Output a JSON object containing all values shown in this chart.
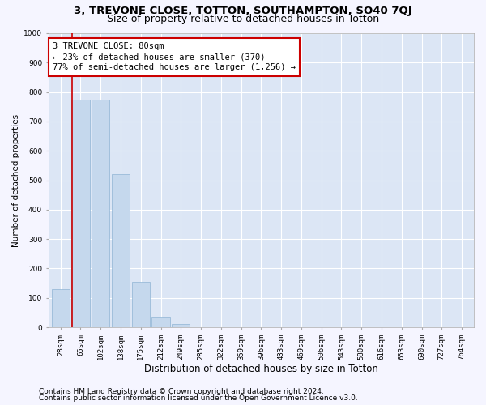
{
  "title": "3, TREVONE CLOSE, TOTTON, SOUTHAMPTON, SO40 7QJ",
  "subtitle": "Size of property relative to detached houses in Totton",
  "xlabel": "Distribution of detached houses by size in Totton",
  "ylabel": "Number of detached properties",
  "categories": [
    "28sqm",
    "65sqm",
    "102sqm",
    "138sqm",
    "175sqm",
    "212sqm",
    "249sqm",
    "285sqm",
    "322sqm",
    "359sqm",
    "396sqm",
    "433sqm",
    "469sqm",
    "506sqm",
    "543sqm",
    "580sqm",
    "616sqm",
    "653sqm",
    "690sqm",
    "727sqm",
    "764sqm"
  ],
  "values": [
    130,
    775,
    775,
    520,
    155,
    37,
    12,
    0,
    0,
    0,
    0,
    0,
    0,
    0,
    0,
    0,
    0,
    0,
    0,
    0,
    0
  ],
  "bar_color": "#c5d8ed",
  "bar_edgecolor": "#8fb4d4",
  "background_color": "#dce6f5",
  "grid_color": "#ffffff",
  "vline_color": "#cc0000",
  "vline_pos": 0.575,
  "annotation_text": "3 TREVONE CLOSE: 80sqm\n← 23% of detached houses are smaller (370)\n77% of semi-detached houses are larger (1,256) →",
  "annotation_box_facecolor": "#ffffff",
  "annotation_box_edgecolor": "#cc0000",
  "ylim": [
    0,
    1000
  ],
  "yticks": [
    0,
    100,
    200,
    300,
    400,
    500,
    600,
    700,
    800,
    900,
    1000
  ],
  "footer1": "Contains HM Land Registry data © Crown copyright and database right 2024.",
  "footer2": "Contains public sector information licensed under the Open Government Licence v3.0.",
  "title_fontsize": 9.5,
  "subtitle_fontsize": 9,
  "xlabel_fontsize": 8.5,
  "ylabel_fontsize": 7.5,
  "tick_fontsize": 6.5,
  "annotation_fontsize": 7.5,
  "footer_fontsize": 6.5,
  "fig_facecolor": "#f5f5ff"
}
